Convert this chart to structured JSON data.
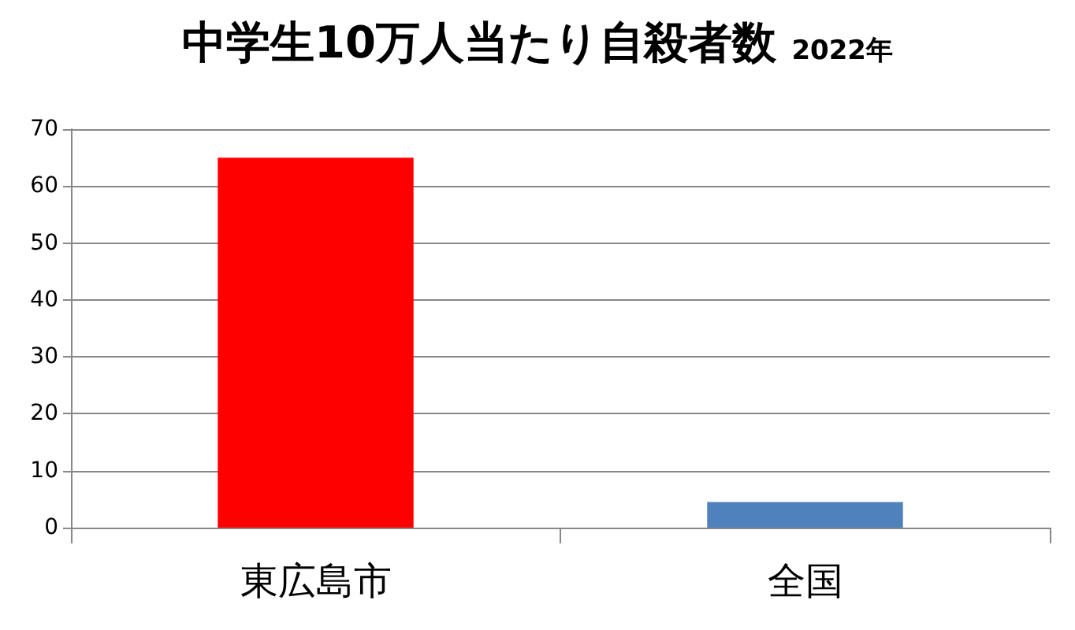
{
  "chart_data": {
    "type": "bar",
    "title": "中学生10万人当たり自殺者数",
    "subtitle": "2022年",
    "categories": [
      "東広島市",
      "全国"
    ],
    "values": [
      65,
      4.5
    ],
    "colors": [
      "#ff0000",
      "#4f81bd"
    ],
    "ylim": [
      0,
      70
    ],
    "yticks": [
      0,
      10,
      20,
      30,
      40,
      50,
      60,
      70
    ],
    "grid": "y"
  }
}
